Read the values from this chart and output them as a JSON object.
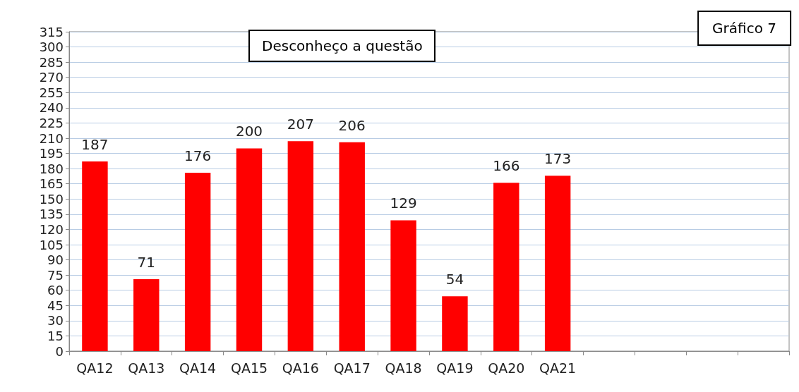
{
  "chart_data": {
    "type": "bar",
    "title": "Desconheço a questão",
    "annotations": [
      "Gráfico 7"
    ],
    "categories": [
      "QA12",
      "QA13",
      "QA14",
      "QA15",
      "QA16",
      "QA17",
      "QA18",
      "QA19",
      "QA20",
      "QA21",
      null,
      null,
      null,
      null
    ],
    "values": [
      187,
      71,
      176,
      200,
      207,
      206,
      129,
      54,
      166,
      173,
      null,
      null,
      null,
      null
    ],
    "color": "#ff0000",
    "ylim": [
      0,
      315
    ],
    "yticks": [
      0,
      15,
      30,
      45,
      60,
      75,
      90,
      105,
      120,
      135,
      150,
      165,
      180,
      195,
      210,
      225,
      240,
      255,
      270,
      285,
      300,
      315
    ],
    "grid": "y",
    "data_labels": true
  }
}
